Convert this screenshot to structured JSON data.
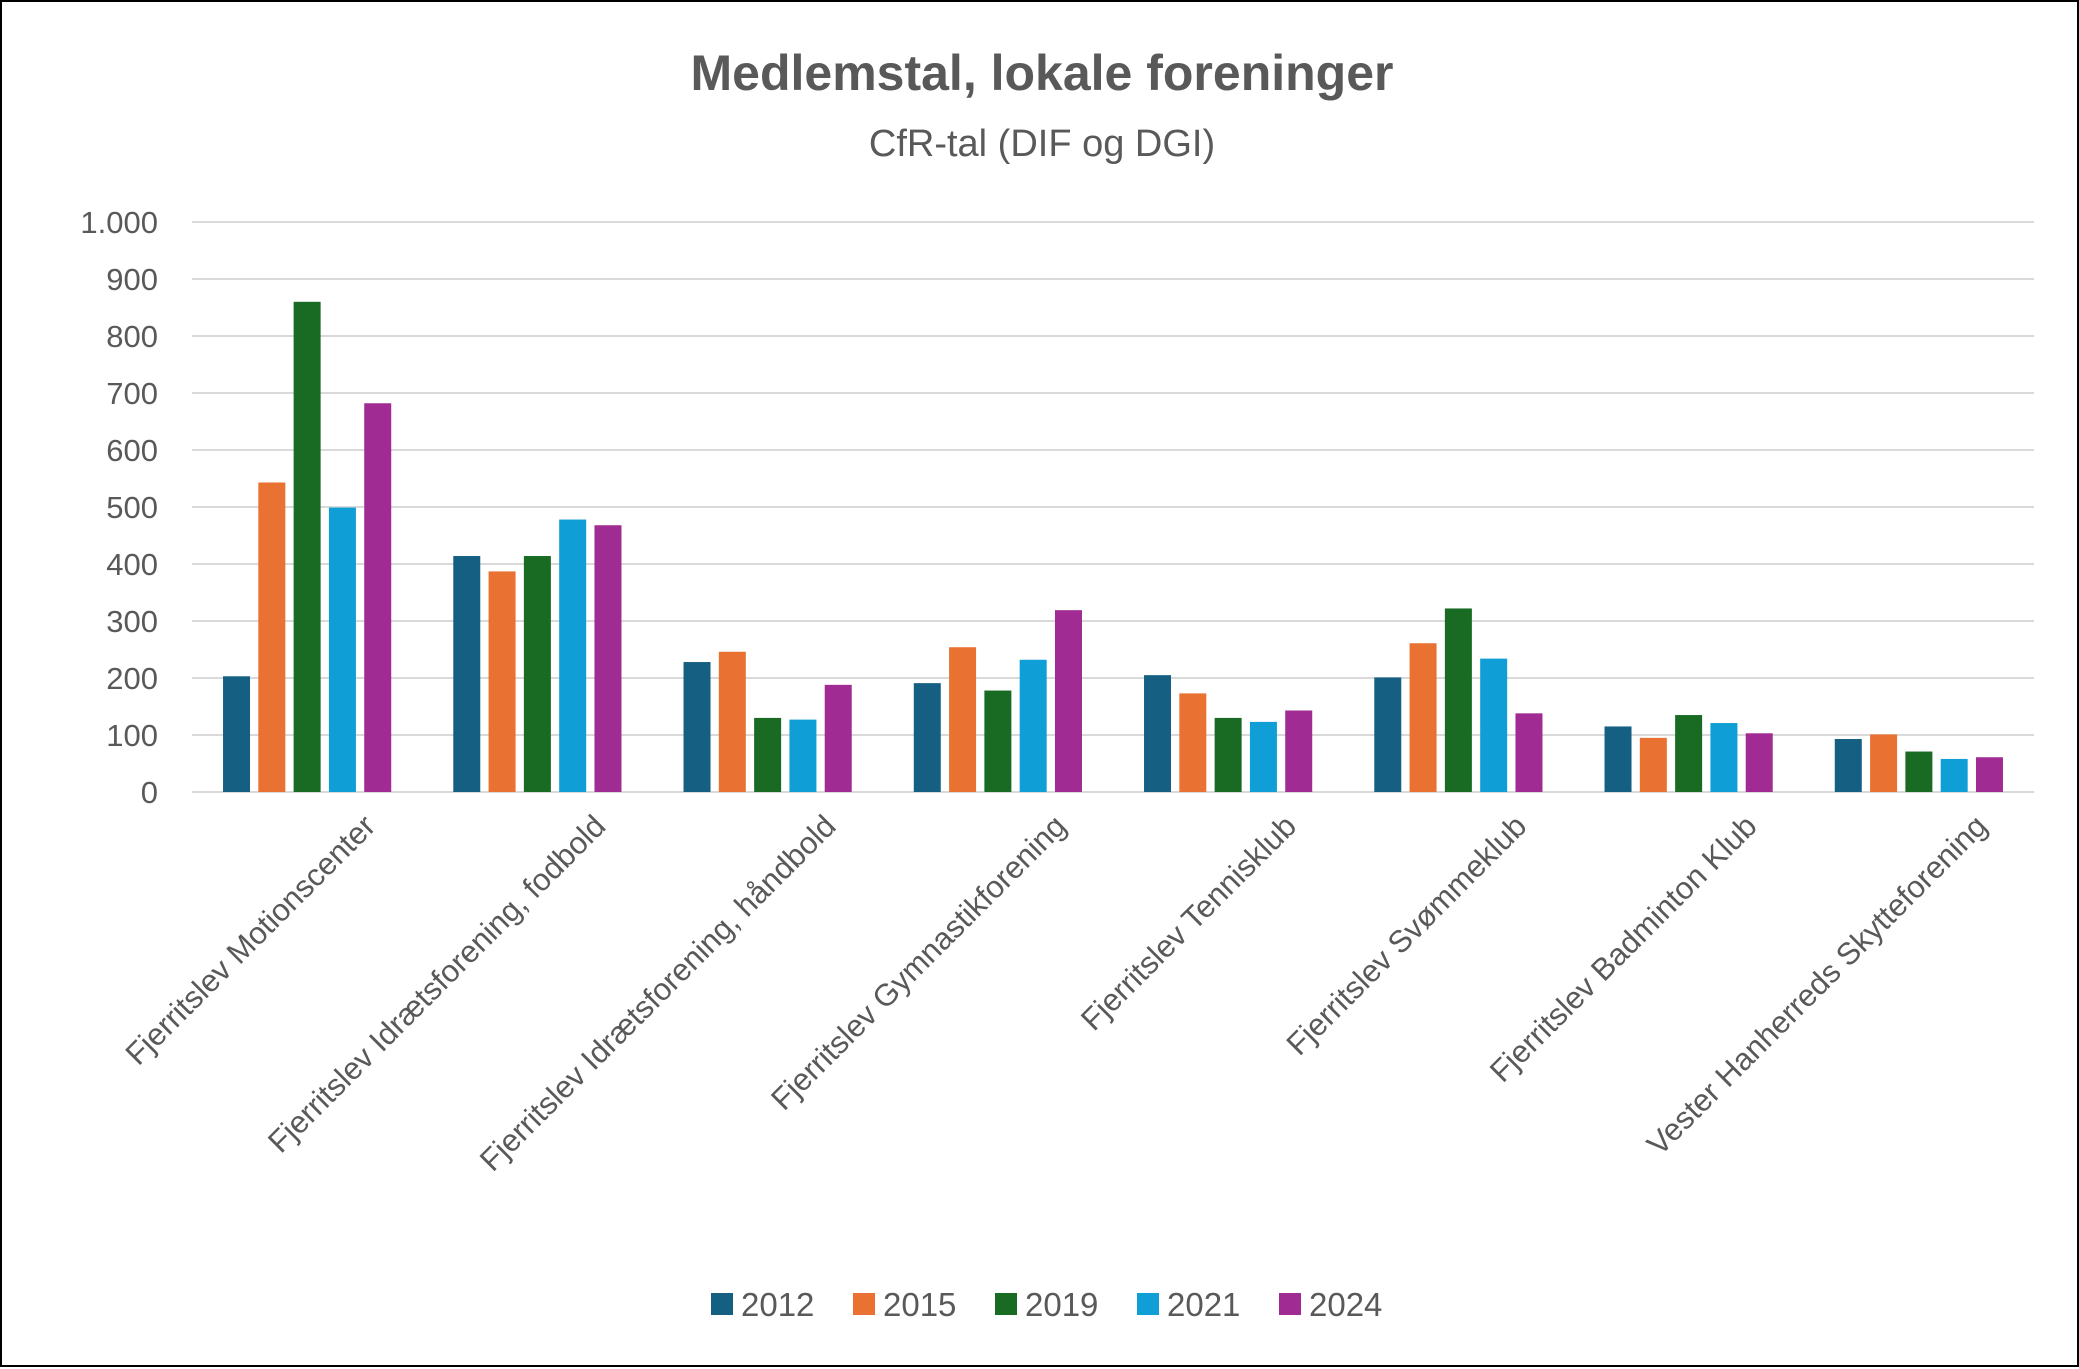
{
  "chart_data": {
    "type": "bar",
    "title": "Medlemstal, lokale foreninger",
    "subtitle": "CfR-tal (DIF og DGI)",
    "xlabel": "",
    "ylabel": "",
    "ylim": [
      0,
      1000
    ],
    "yticks": [
      0,
      100,
      200,
      300,
      400,
      500,
      600,
      700,
      800,
      900,
      1000
    ],
    "ytick_labels": [
      "0",
      "100",
      "200",
      "300",
      "400",
      "500",
      "600",
      "700",
      "800",
      "900",
      "1.000"
    ],
    "grid": true,
    "legend_position": "bottom",
    "categories": [
      "Fjerritslev Motionscenter",
      "Fjerritslev Idrætsforening, fodbold",
      "Fjerritslev Idrætsforening, håndbold",
      "Fjerritslev Gymnastikforening",
      "Fjerritslev Tennisklub",
      "Fjerritslev Svømmeklub",
      "Fjerritslev Badminton Klub",
      "Vester Hanherreds Skytteforening"
    ],
    "series": [
      {
        "name": "2012",
        "color": "#156082",
        "values": [
          203,
          414,
          228,
          191,
          205,
          201,
          115,
          93
        ]
      },
      {
        "name": "2015",
        "color": "#E97132",
        "values": [
          543,
          387,
          246,
          254,
          173,
          261,
          95,
          101
        ]
      },
      {
        "name": "2019",
        "color": "#196B24",
        "values": [
          860,
          414,
          130,
          178,
          130,
          322,
          135,
          71
        ]
      },
      {
        "name": "2021",
        "color": "#0F9ED5",
        "values": [
          499,
          478,
          127,
          232,
          123,
          234,
          121,
          58
        ]
      },
      {
        "name": "2024",
        "color": "#A02B93",
        "values": [
          682,
          468,
          188,
          319,
          143,
          138,
          103,
          61
        ]
      }
    ]
  }
}
